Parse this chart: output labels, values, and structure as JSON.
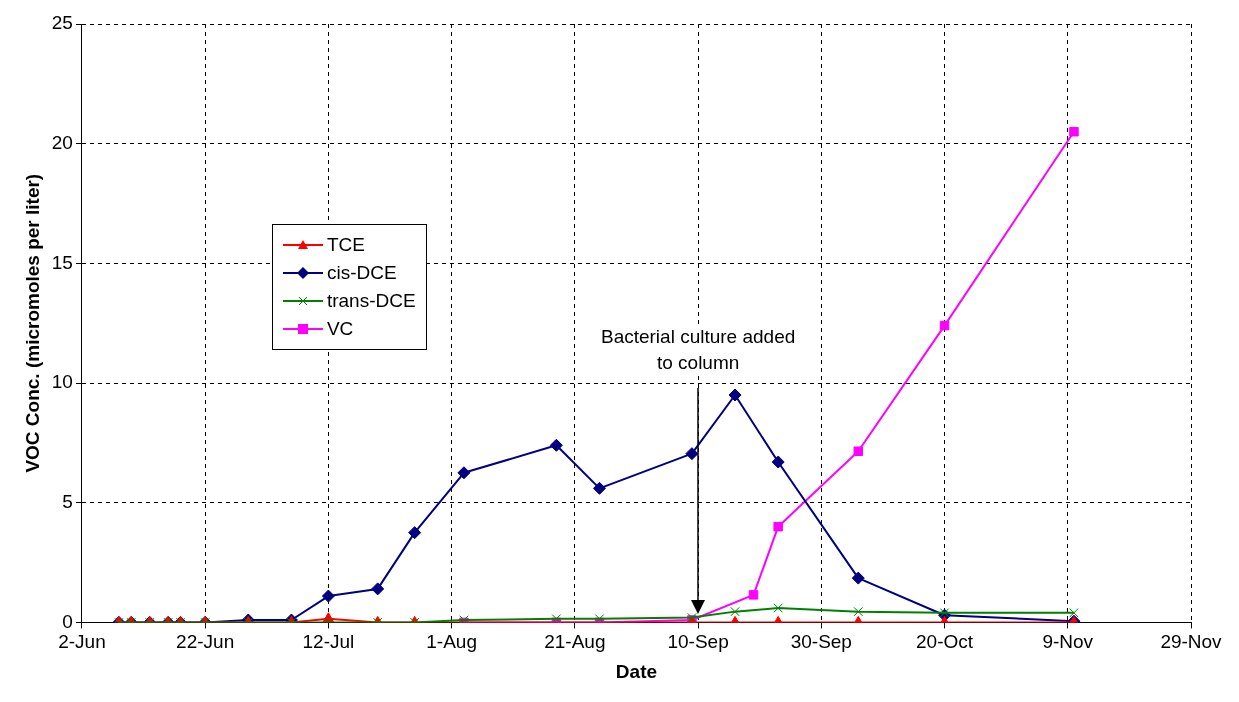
{
  "chart_data": {
    "type": "line",
    "xlabel": "Date",
    "ylabel": "VOC Conc. (micromoles per liter)",
    "xlim": [
      "--06-02",
      "--11-29"
    ],
    "xticks": [
      {
        "value": "--06-02",
        "label": "2-Jun"
      },
      {
        "value": "--06-22",
        "label": "22-Jun"
      },
      {
        "value": "--07-12",
        "label": "12-Jul"
      },
      {
        "value": "--08-01",
        "label": "1-Aug"
      },
      {
        "value": "--08-21",
        "label": "21-Aug"
      },
      {
        "value": "--09-10",
        "label": "10-Sep"
      },
      {
        "value": "--09-30",
        "label": "30-Sep"
      },
      {
        "value": "--10-20",
        "label": "20-Oct"
      },
      {
        "value": "--11-09",
        "label": "9-Nov"
      },
      {
        "value": "--11-29",
        "label": "29-Nov"
      }
    ],
    "ylim": [
      0,
      25
    ],
    "yticks": [
      0,
      5,
      10,
      15,
      20,
      25
    ],
    "grid": true,
    "legend": "left",
    "line_style": "solid",
    "annotations": [
      "Bacterial culture added to column"
    ],
    "series": [
      {
        "name": "TCE",
        "color": "#ff0000",
        "marker": "triangle",
        "x": [
          "--06-08",
          "--06-10",
          "--06-13",
          "--06-16",
          "--06-18",
          "--06-22",
          "--06-29",
          "--07-06",
          "--07-12",
          "--07-20",
          "--07-26",
          "--09-09",
          "--09-16",
          "--09-23",
          "--10-06",
          "--10-20",
          "--11-10"
        ],
        "values": [
          0,
          0,
          0,
          0,
          0,
          0,
          0,
          0,
          0.15,
          0,
          0,
          0,
          0,
          0,
          0,
          0,
          0
        ]
      },
      {
        "name": "cis-DCE",
        "color": "#000080",
        "marker": "diamond",
        "x": [
          "--06-08",
          "--06-10",
          "--06-13",
          "--06-16",
          "--06-18",
          "--06-22",
          "--06-29",
          "--07-06",
          "--07-12",
          "--07-20",
          "--07-26",
          "--08-03",
          "--08-18",
          "--08-25",
          "--09-09",
          "--09-16",
          "--09-23",
          "--10-06",
          "--10-20",
          "--11-10"
        ],
        "values": [
          0,
          0,
          0,
          0,
          0,
          0,
          0.1,
          0.1,
          1.1,
          1.4,
          3.75,
          6.25,
          7.4,
          5.6,
          7.05,
          9.5,
          6.7,
          1.85,
          0.3,
          0.05
        ]
      },
      {
        "name": "trans-DCE",
        "color": "#008000",
        "marker": "cross",
        "x": [
          "--06-08",
          "--06-10",
          "--06-13",
          "--06-16",
          "--06-18",
          "--06-22",
          "--06-29",
          "--07-06",
          "--07-12",
          "--07-20",
          "--07-26",
          "--08-03",
          "--08-18",
          "--08-25",
          "--09-09",
          "--09-16",
          "--09-23",
          "--10-06",
          "--10-20",
          "--11-10"
        ],
        "values": [
          0,
          0,
          0,
          0,
          0,
          0,
          0,
          0,
          0,
          0,
          0,
          0.1,
          0.15,
          0.15,
          0.2,
          0.45,
          0.6,
          0.45,
          0.4,
          0.4
        ]
      },
      {
        "name": "VC",
        "color": "#ff00ff",
        "marker": "square",
        "x": [
          "--08-03",
          "--08-18",
          "--08-25",
          "--09-09",
          "--09-19",
          "--09-23",
          "--10-06",
          "--10-20",
          "--11-10"
        ],
        "values": [
          0,
          0,
          0,
          0.1,
          1.15,
          4.0,
          7.15,
          12.4,
          20.5
        ]
      }
    ]
  }
}
